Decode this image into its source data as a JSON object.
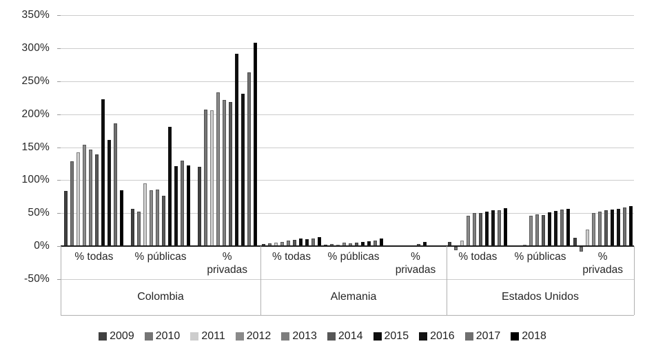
{
  "chart_data": {
    "type": "bar",
    "title": "",
    "xlabel": "",
    "ylabel": "",
    "ylim": [
      -50,
      350
    ],
    "yticks": [
      350,
      300,
      250,
      200,
      150,
      100,
      50,
      0,
      -50
    ],
    "ytick_labels": [
      "350%",
      "300%",
      "250%",
      "200%",
      "150%",
      "100%",
      "50%",
      "0%",
      "-50%"
    ],
    "grid": true,
    "legend_position": "bottom",
    "series": [
      {
        "name": "2009",
        "color": "#404040"
      },
      {
        "name": "2010",
        "color": "#757575"
      },
      {
        "name": "2011",
        "color": "#cdcdcd"
      },
      {
        "name": "2012",
        "color": "#8a8a8a"
      },
      {
        "name": "2013",
        "color": "#7e7e7e"
      },
      {
        "name": "2014",
        "color": "#575757"
      },
      {
        "name": "2015",
        "color": "#0e0e0e"
      },
      {
        "name": "2016",
        "color": "#141414"
      },
      {
        "name": "2017",
        "color": "#6f6f6f"
      },
      {
        "name": "2018",
        "color": "#000000"
      }
    ],
    "countries": [
      {
        "name": "Colombia",
        "groups": [
          {
            "label": "% todas",
            "values": [
              84,
              128,
              142,
              154,
              146,
              139,
              222,
              161,
              186,
              85
            ]
          },
          {
            "label": "% públicas",
            "values": [
              56,
              52,
              95,
              85,
              86,
              76,
              181,
              121,
              130,
              122
            ]
          },
          {
            "label": "%\nprivadas",
            "values": [
              120,
              207,
              206,
              233,
              221,
              218,
              291,
              231,
              263,
              308
            ]
          }
        ]
      },
      {
        "name": "Alemania",
        "groups": [
          {
            "label": "% todas",
            "values": [
              3,
              4,
              5,
              6,
              8,
              9,
              11,
              10,
              12,
              14
            ]
          },
          {
            "label": "% públicas",
            "values": [
              2,
              3,
              2,
              5,
              4,
              5,
              6,
              7,
              8,
              12
            ]
          },
          {
            "label": "%\nprivadas",
            "values": [
              0,
              0,
              0,
              0,
              0,
              3,
              6,
              0,
              0,
              0
            ]
          }
        ]
      },
      {
        "name": "Estados Unidos",
        "groups": [
          {
            "label": "% todas",
            "values": [
              6,
              -5,
              8,
              46,
              50,
              50,
              52,
              54,
              54,
              57
            ]
          },
          {
            "label": "% públicas",
            "values": [
              1,
              1,
              2,
              46,
              48,
              47,
              51,
              53,
              55,
              56
            ]
          },
          {
            "label": "%\nprivadas",
            "values": [
              13,
              -7,
              25,
              50,
              52,
              54,
              55,
              56,
              58,
              61
            ]
          }
        ]
      }
    ]
  }
}
